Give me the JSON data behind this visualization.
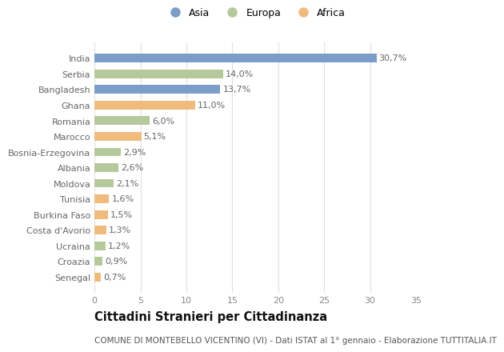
{
  "countries": [
    "India",
    "Serbia",
    "Bangladesh",
    "Ghana",
    "Romania",
    "Marocco",
    "Bosnia-Erzegovina",
    "Albania",
    "Moldova",
    "Tunisia",
    "Burkina Faso",
    "Costa d'Avorio",
    "Ucraina",
    "Croazia",
    "Senegal"
  ],
  "values": [
    30.7,
    14.0,
    13.7,
    11.0,
    6.0,
    5.1,
    2.9,
    2.6,
    2.1,
    1.6,
    1.5,
    1.3,
    1.2,
    0.9,
    0.7
  ],
  "labels": [
    "30,7%",
    "14,0%",
    "13,7%",
    "11,0%",
    "6,0%",
    "5,1%",
    "2,9%",
    "2,6%",
    "2,1%",
    "1,6%",
    "1,5%",
    "1,3%",
    "1,2%",
    "0,9%",
    "0,7%"
  ],
  "continents": [
    "Asia",
    "Europa",
    "Asia",
    "Africa",
    "Europa",
    "Africa",
    "Europa",
    "Europa",
    "Europa",
    "Africa",
    "Africa",
    "Africa",
    "Europa",
    "Europa",
    "Africa"
  ],
  "colors": {
    "Asia": "#7b9dc9",
    "Europa": "#b5c99a",
    "Africa": "#f0bc7e"
  },
  "title": "Cittadini Stranieri per Cittadinanza",
  "subtitle": "COMUNE DI MONTEBELLO VICENTINO (VI) - Dati ISTAT al 1° gennaio - Elaborazione TUTTITALIA.IT",
  "xlim": [
    0,
    35
  ],
  "xticks": [
    0,
    5,
    10,
    15,
    20,
    25,
    30,
    35
  ],
  "background_color": "#ffffff",
  "grid_color": "#e0e0e0",
  "bar_height": 0.55,
  "label_fontsize": 8,
  "tick_fontsize": 8,
  "title_fontsize": 10.5,
  "subtitle_fontsize": 7.5,
  "legend_fontsize": 9
}
